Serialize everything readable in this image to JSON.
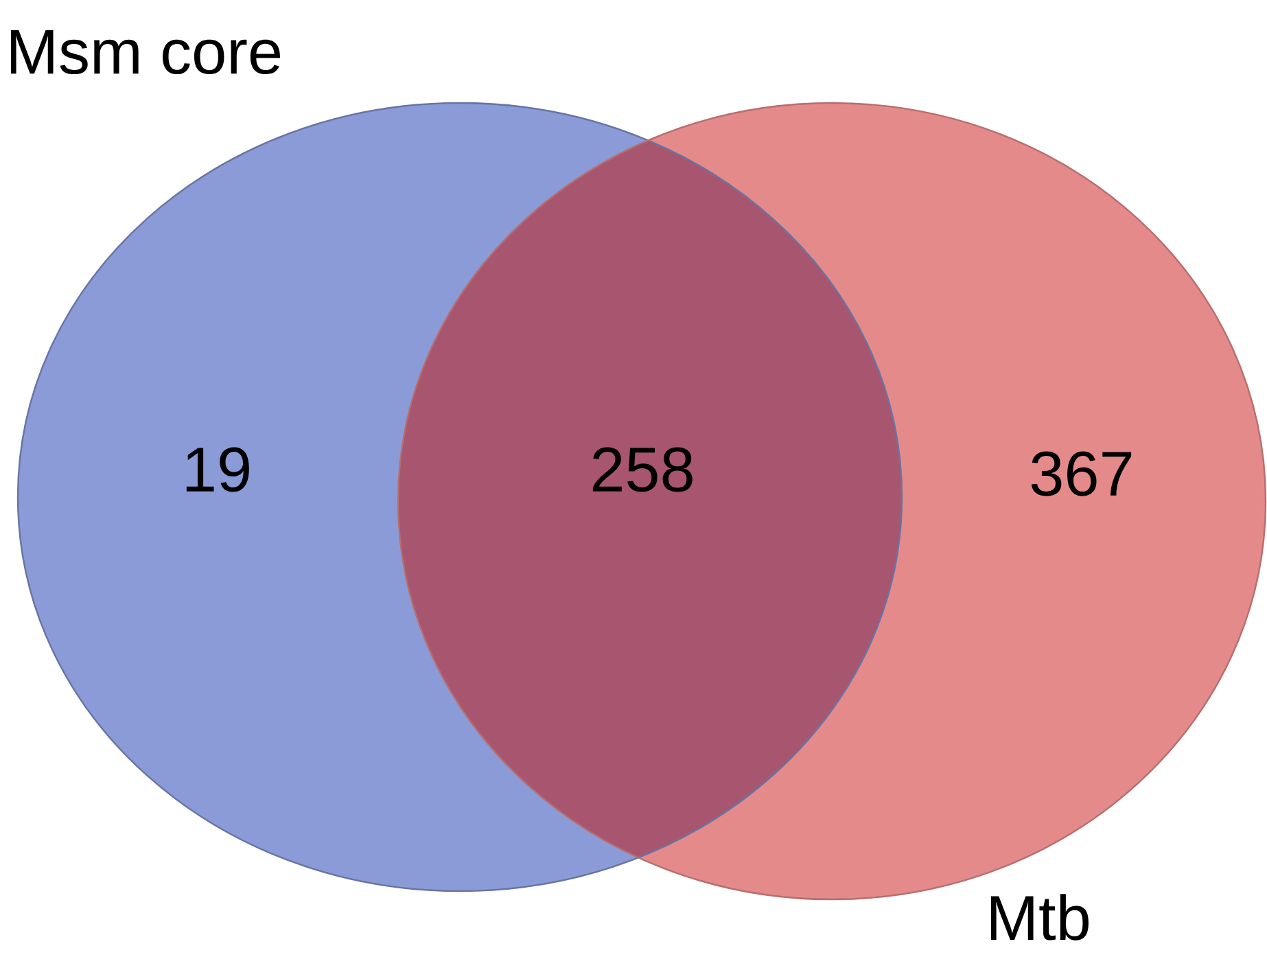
{
  "chart_data": {
    "type": "other",
    "categories": [
      null,
      null,
      null
    ],
    "values": [
      19,
      258,
      367
    ],
    "colors": [
      "#8a9bd8",
      "#a8566f",
      "#e58a8a"
    ],
    "data_labels": true,
    "annotations": [
      "Msm core",
      "Mtb"
    ]
  }
}
